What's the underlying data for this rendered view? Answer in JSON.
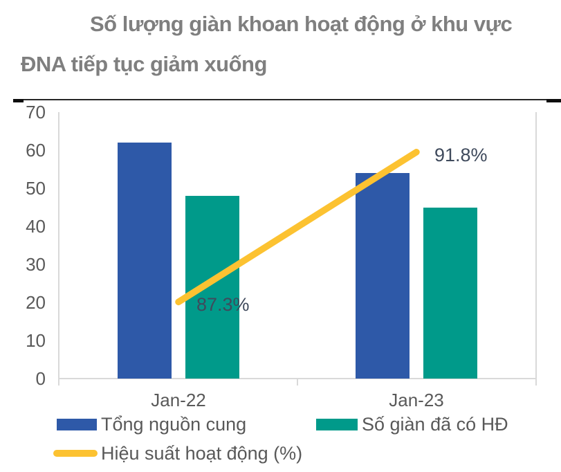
{
  "title": {
    "text": "Số lượng giàn khoan hoạt động ở khu vực ĐNA tiếp tục giảm xuống"
  },
  "chart_data": {
    "type": "bar",
    "subtype": "grouped-bar-with-line",
    "categories": [
      "Jan-22",
      "Jan-23"
    ],
    "series": [
      {
        "name": "Tổng nguồn cung",
        "type": "bar",
        "values": [
          62,
          54
        ],
        "color": "#2e59a8"
      },
      {
        "name": "Số giàn đã có HĐ",
        "type": "bar",
        "values": [
          48,
          45
        ],
        "color": "#009a8a"
      },
      {
        "name": "Hiệu suất hoạt động (%)",
        "type": "line",
        "values": [
          87.3,
          91.8
        ],
        "labels": [
          "87.3%",
          "91.8%"
        ],
        "color": "#fcc231",
        "axis": "secondary"
      }
    ],
    "primary_ylim": [
      0,
      70
    ],
    "primary_yticks": [
      0,
      10,
      20,
      30,
      40,
      50,
      60,
      70
    ],
    "secondary_ylim": [
      85,
      93
    ],
    "grid": "off",
    "legend_position": "bottom",
    "axis_color": "#d9d9d9",
    "tick_label_color": "#595959",
    "title_color": "#7f7f7f",
    "data_label_color": "#3f4a5c"
  }
}
